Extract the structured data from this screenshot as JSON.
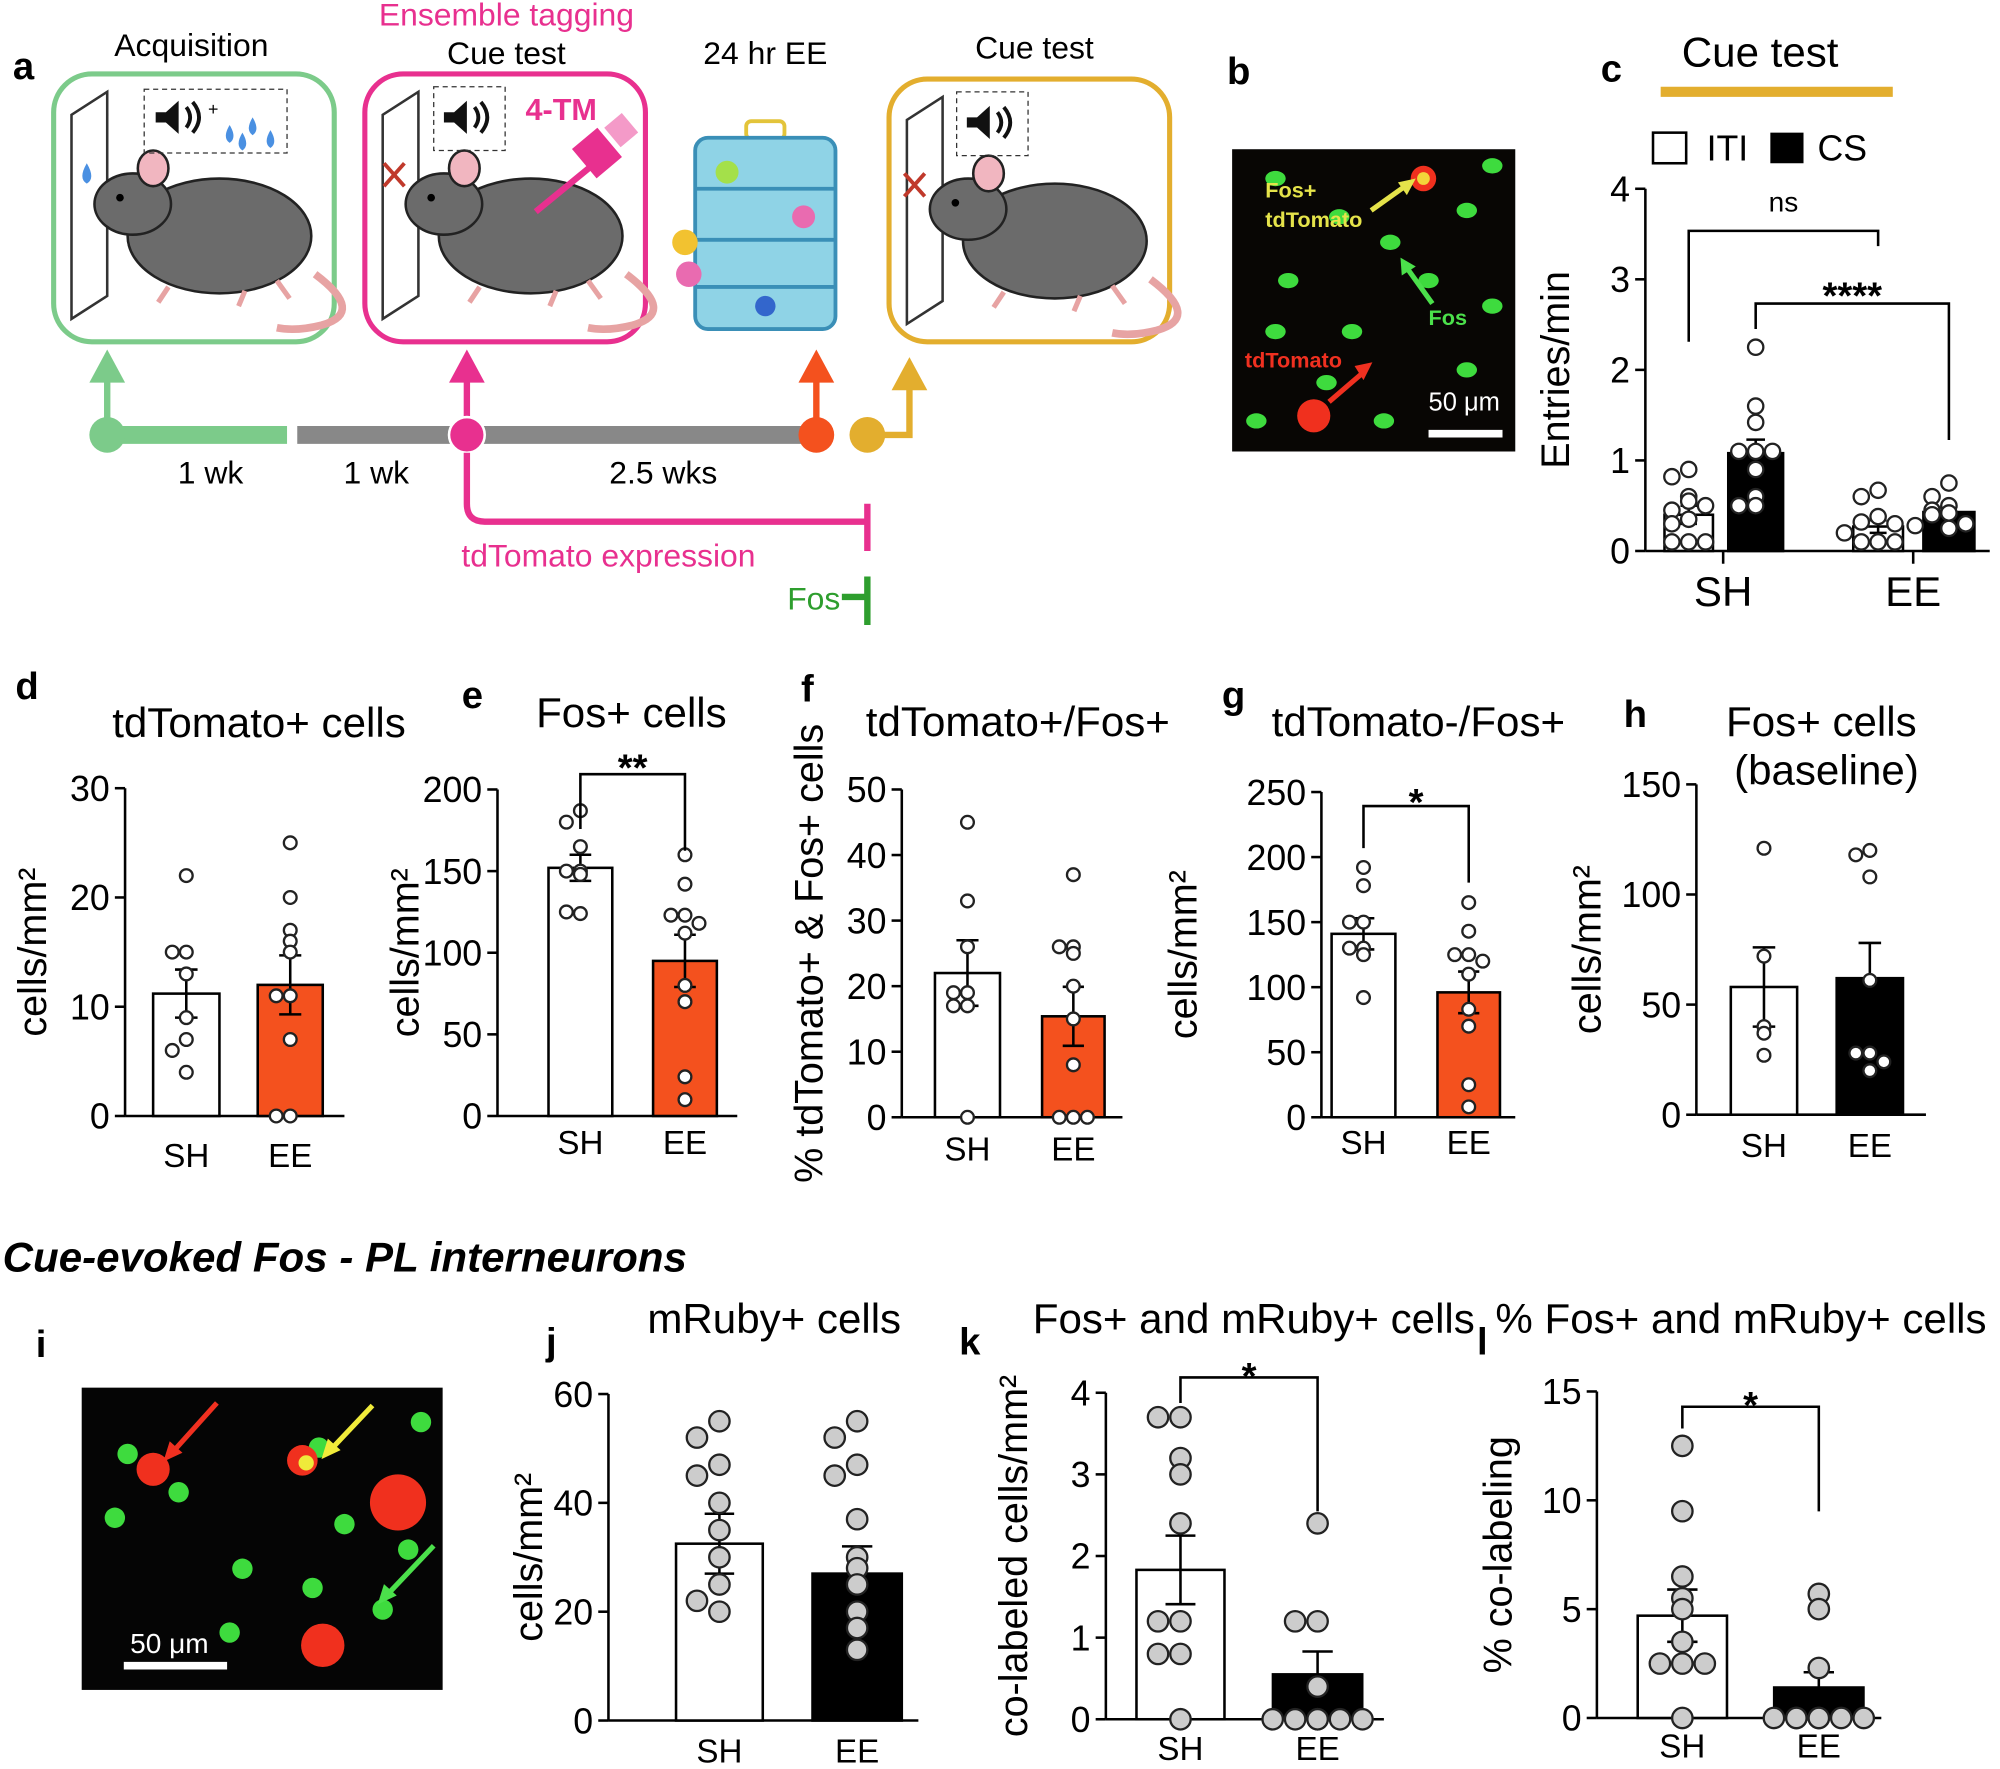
{
  "figure": {
    "section_title": "Cue-evoked Fos - PL interneurons",
    "colors": {
      "green": "#7CCB8A",
      "pink": "#E8308F",
      "orange": "#F4511E",
      "gold": "#E3AE2E",
      "gray": "#888888",
      "blue": "#4A90E2"
    }
  },
  "schematic": {
    "panel": "a",
    "stages": [
      {
        "title": "Acquisition"
      },
      {
        "title_top": "Ensemble tagging",
        "title": "Cue test",
        "drug": "4-TM"
      },
      {
        "title": "24 hr EE"
      },
      {
        "title": "Cue test"
      }
    ],
    "durations": [
      "1 wk",
      "1 wk",
      "2.5 wks"
    ],
    "expression_label": "tdTomato expression",
    "fos_label": "Fos",
    "icons": [
      "speaker-icon",
      "water-drop-icon",
      "mouse-icon",
      "syringe-icon",
      "cage-icon",
      "x-mark-icon"
    ]
  },
  "image_b": {
    "panel": "b",
    "label_fos_td_1": "Fos+",
    "label_fos_td_2": "tdTomato",
    "label_fos": "Fos",
    "label_td": "tdTomato",
    "scale": "50 μm"
  },
  "image_i": {
    "panel": "i",
    "scale": "50 μm"
  },
  "chart_data": [
    {
      "panel": "c",
      "type": "bar",
      "title": "Cue test",
      "ylabel": "Entries/min",
      "ylim": [
        0,
        4
      ],
      "yticks": [
        "0",
        "1",
        "2",
        "3",
        "4"
      ],
      "categories": [
        "SH",
        "EE"
      ],
      "legend": [
        "ITI",
        "CS"
      ],
      "bars": [
        {
          "category": "SH",
          "series": "ITI",
          "mean": 0.4,
          "sem": 0.1,
          "fill": "#ffffff",
          "point_fill": "#ffffff",
          "points": [
            0.9,
            0.82,
            0.6,
            0.55,
            0.45,
            0.35,
            0.3,
            0.1,
            0.1,
            0.1,
            0.5
          ]
        },
        {
          "category": "SH",
          "series": "CS",
          "mean": 1.08,
          "sem": 0.15,
          "fill": "#000000",
          "point_fill": "#ffffff",
          "points": [
            2.25,
            1.6,
            1.42,
            1.1,
            1.1,
            1.1,
            0.9,
            0.6,
            0.5,
            0.5
          ]
        },
        {
          "category": "EE",
          "series": "ITI",
          "mean": 0.27,
          "sem": 0.07,
          "fill": "#ffffff",
          "point_fill": "#ffffff",
          "points": [
            0.67,
            0.6,
            0.38,
            0.32,
            0.3,
            0.1,
            0.1,
            0.1,
            0.2
          ]
        },
        {
          "category": "EE",
          "series": "CS",
          "mean": 0.43,
          "sem": 0.06,
          "fill": "#000000",
          "point_fill": "#ffffff",
          "points": [
            0.75,
            0.6,
            0.5,
            0.45,
            0.42,
            0.4,
            0.3,
            0.28,
            0.25
          ]
        }
      ],
      "brackets": [
        {
          "between": [
            0,
            2
          ],
          "label": "ns"
        },
        {
          "between": [
            1,
            3
          ],
          "label": "****"
        }
      ]
    },
    {
      "panel": "d",
      "type": "bar",
      "title": "tdTomato+ cells",
      "ylabel": "cells/mm²",
      "ylim": [
        0,
        30
      ],
      "yticks": [
        "0",
        "10",
        "20",
        "30"
      ],
      "categories": [
        "SH",
        "EE"
      ],
      "bars": [
        {
          "category": "SH",
          "mean": 11.2,
          "sem": 2.2,
          "fill": "#ffffff",
          "point_fill": "#ffffff",
          "points": [
            22,
            15,
            15,
            13,
            9,
            7,
            6,
            4
          ]
        },
        {
          "category": "EE",
          "mean": 12,
          "sem": 2.7,
          "fill": "#F4511E",
          "point_fill": "#ffffff",
          "points": [
            25,
            20,
            17,
            16,
            15,
            11,
            11,
            7,
            0,
            0
          ]
        }
      ],
      "brackets": []
    },
    {
      "panel": "e",
      "type": "bar",
      "title": "Fos+ cells",
      "ylabel": "cells/mm²",
      "ylim": [
        0,
        200
      ],
      "yticks": [
        "0",
        "50",
        "100",
        "150",
        "200"
      ],
      "categories": [
        "SH",
        "EE"
      ],
      "bars": [
        {
          "category": "SH",
          "mean": 152,
          "sem": 8,
          "fill": "#ffffff",
          "point_fill": "#ffffff",
          "points": [
            187,
            180,
            165,
            150,
            150,
            148,
            124,
            125
          ]
        },
        {
          "category": "EE",
          "mean": 95,
          "sem": 16,
          "fill": "#F4511E",
          "point_fill": "#ffffff",
          "points": [
            160,
            142,
            123,
            123,
            118,
            112,
            80,
            70,
            24,
            10
          ]
        }
      ],
      "brackets": [
        {
          "between": [
            0,
            1
          ],
          "label": "**"
        }
      ]
    },
    {
      "panel": "f",
      "type": "bar",
      "title": "tdTomato+/Fos+",
      "ylabel": "% tdTomato+ & Fos+ cells",
      "ylim": [
        0,
        50
      ],
      "yticks": [
        "0",
        "10",
        "20",
        "30",
        "40",
        "50"
      ],
      "categories": [
        "SH",
        "EE"
      ],
      "bars": [
        {
          "category": "SH",
          "mean": 22,
          "sem": 5,
          "fill": "#ffffff",
          "point_fill": "#ffffff",
          "points": [
            45,
            33,
            26,
            19,
            19,
            17,
            17,
            0
          ]
        },
        {
          "category": "EE",
          "mean": 15.4,
          "sem": 4.5,
          "fill": "#F4511E",
          "point_fill": "#ffffff",
          "points": [
            37,
            26,
            26,
            25,
            20,
            15,
            8,
            0,
            0,
            0
          ]
        }
      ],
      "brackets": []
    },
    {
      "panel": "g",
      "type": "bar",
      "title": "tdTomato-/Fos+",
      "ylabel": "cells/mm²",
      "ylim": [
        0,
        250
      ],
      "yticks": [
        "0",
        "50",
        "100",
        "150",
        "200",
        "250"
      ],
      "categories": [
        "SH",
        "EE"
      ],
      "bars": [
        {
          "category": "SH",
          "mean": 141,
          "sem": 12,
          "fill": "#ffffff",
          "point_fill": "#ffffff",
          "points": [
            192,
            178,
            150,
            150,
            130,
            125,
            130,
            92
          ]
        },
        {
          "category": "EE",
          "mean": 96,
          "sem": 16,
          "fill": "#F4511E",
          "point_fill": "#ffffff",
          "points": [
            165,
            143,
            125,
            125,
            120,
            110,
            83,
            70,
            25,
            8
          ]
        }
      ],
      "brackets": [
        {
          "between": [
            0,
            1
          ],
          "label": "*"
        }
      ]
    },
    {
      "panel": "h",
      "type": "bar",
      "title": "Fos+ cells",
      "subtitle": "(baseline)",
      "ylabel": "cells/mm²",
      "ylim": [
        0,
        150
      ],
      "yticks": [
        "0",
        "50",
        "100",
        "150"
      ],
      "categories": [
        "SH",
        "EE"
      ],
      "bars": [
        {
          "category": "SH",
          "mean": 58,
          "sem": 18,
          "fill": "#ffffff",
          "point_fill": "#ffffff",
          "points": [
            121,
            72,
            40,
            37,
            27
          ]
        },
        {
          "category": "EE",
          "mean": 62,
          "sem": 16,
          "fill": "#000000",
          "point_fill": "#ffffff",
          "points": [
            120,
            118,
            108,
            61,
            28,
            28,
            24,
            20
          ]
        }
      ],
      "brackets": []
    },
    {
      "panel": "j",
      "type": "bar",
      "title": "mRuby+ cells",
      "ylabel": "cells/mm²",
      "ylim": [
        0,
        60
      ],
      "yticks": [
        "0",
        "20",
        "40",
        "60"
      ],
      "categories": [
        "SH",
        "EE"
      ],
      "bars": [
        {
          "category": "SH",
          "mean": 32.5,
          "sem": 5.5,
          "fill": "#ffffff",
          "point_fill": "#cccccc",
          "points": [
            55,
            52,
            47,
            45,
            40,
            35,
            30,
            25,
            22,
            20
          ]
        },
        {
          "category": "EE",
          "mean": 27,
          "sem": 5,
          "fill": "#000000",
          "point_fill": "#cccccc",
          "points": [
            55,
            52,
            47,
            45,
            37,
            30,
            28,
            25,
            20,
            17,
            13
          ]
        }
      ],
      "brackets": []
    },
    {
      "panel": "k",
      "type": "bar",
      "title": "Fos+ and mRuby+ cells",
      "ylabel": "co-labeled cells/mm²",
      "ylim": [
        0,
        4
      ],
      "yticks": [
        "0",
        "1",
        "2",
        "3",
        "4"
      ],
      "categories": [
        "SH",
        "EE"
      ],
      "bars": [
        {
          "category": "SH",
          "mean": 1.83,
          "sem": 0.42,
          "fill": "#ffffff",
          "point_fill": "#cccccc",
          "points": [
            3.7,
            3.7,
            3.2,
            3.0,
            2.4,
            1.2,
            1.2,
            0.8,
            0.8,
            0
          ]
        },
        {
          "category": "EE",
          "mean": 0.55,
          "sem": 0.28,
          "fill": "#000000",
          "point_fill": "#cccccc",
          "points": [
            2.4,
            1.2,
            1.2,
            0.4,
            0,
            0,
            0,
            0,
            0,
            0
          ]
        }
      ],
      "brackets": [
        {
          "between": [
            0,
            1
          ],
          "label": "*"
        }
      ]
    },
    {
      "panel": "l",
      "type": "bar",
      "title": "% Fos+ and mRuby+ cells",
      "ylabel": "% co-labeling",
      "ylim": [
        0,
        15
      ],
      "yticks": [
        "0",
        "5",
        "10",
        "15"
      ],
      "categories": [
        "SH",
        "EE"
      ],
      "bars": [
        {
          "category": "SH",
          "mean": 4.7,
          "sem": 1.2,
          "fill": "#ffffff",
          "point_fill": "#cccccc",
          "points": [
            12.5,
            9.5,
            6.5,
            5.5,
            5,
            3.5,
            2.5,
            2.5,
            2.5,
            0
          ]
        },
        {
          "category": "EE",
          "mean": 1.4,
          "sem": 0.7,
          "fill": "#000000",
          "point_fill": "#cccccc",
          "points": [
            5.7,
            5.0,
            2.3,
            0,
            0,
            0,
            0,
            0,
            0,
            0
          ]
        }
      ],
      "brackets": [
        {
          "between": [
            0,
            1
          ],
          "label": "*"
        }
      ]
    }
  ]
}
